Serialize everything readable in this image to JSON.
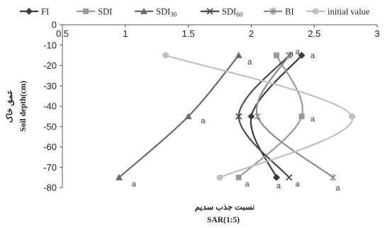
{
  "chart_data": {
    "type": "line",
    "xlabel": "SAR(1:5)",
    "xlabel_fa": "نسبت جذب سدیم",
    "ylabel": "Soil depth(cm)",
    "ylabel_fa": "عمق خاک",
    "xlim": [
      0.5,
      3
    ],
    "ylim": [
      -80,
      0
    ],
    "x_ticks": [
      "0.5",
      "1",
      "1.5",
      "2",
      "2.5",
      "3"
    ],
    "y_ticks": [
      "0",
      "-10",
      "-20",
      "-30",
      "-40",
      "-50",
      "-60",
      "-70",
      "-80"
    ],
    "x_axis_position": "top",
    "grid": false,
    "legend_position": "top",
    "depths": [
      -15,
      -45,
      -75
    ],
    "series": [
      {
        "name": "FI",
        "marker": "diamond",
        "color": "#3c3c3c",
        "x": [
          2.4,
          2.0,
          2.2
        ]
      },
      {
        "name": "SDI",
        "marker": "square",
        "color": "#9a9a9a",
        "x": [
          2.2,
          2.4,
          1.9
        ]
      },
      {
        "name": "SDI",
        "name_sub": "30",
        "marker": "triangle",
        "color": "#6a6a6a",
        "x": [
          1.9,
          1.5,
          0.95
        ]
      },
      {
        "name": "SDI",
        "name_sub": "60",
        "marker": "x",
        "color": "#4a4a4a",
        "x": [
          2.3,
          1.9,
          2.3
        ]
      },
      {
        "name": "BI",
        "marker": "asterisk",
        "color": "#8c8c8c",
        "x": [
          2.3,
          2.05,
          2.65
        ]
      },
      {
        "name": "initial value",
        "marker": "circle",
        "color": "#c0c0c0",
        "x": [
          1.32,
          2.8,
          1.75
        ]
      }
    ],
    "annotations": [
      {
        "text": "a",
        "x": 2.47,
        "y": -15
      },
      {
        "text": "a",
        "x": 2.3,
        "y": -14
      },
      {
        "text": "a",
        "x": 2.35,
        "y": -13
      },
      {
        "text": "a",
        "x": 1.97,
        "y": -18
      },
      {
        "text": "a",
        "x": 1.6,
        "y": -47
      },
      {
        "text": "a",
        "x": 2.47,
        "y": -46
      },
      {
        "text": "a",
        "x": 1.05,
        "y": -78
      },
      {
        "text": "a",
        "x": 1.95,
        "y": -78
      },
      {
        "text": "a",
        "x": 2.2,
        "y": -79
      },
      {
        "text": "a",
        "x": 2.35,
        "y": -78
      },
      {
        "text": "a",
        "x": 2.67,
        "y": -80
      }
    ]
  }
}
